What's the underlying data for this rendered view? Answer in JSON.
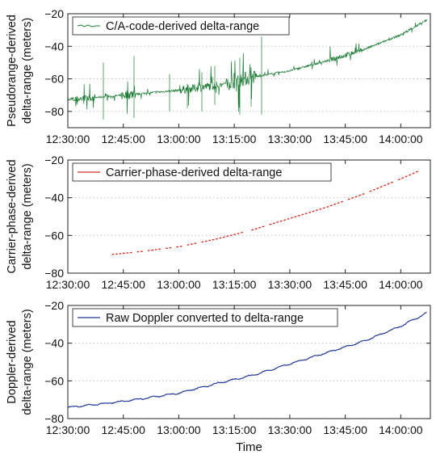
{
  "chart_data": [
    {
      "type": "line",
      "ylabel": [
        "Pseudorange-derived",
        "delta-range (meters)"
      ],
      "xlabel": "",
      "xlim": [
        "12:30:00",
        "14:08:00"
      ],
      "ylim": [
        -90,
        -20
      ],
      "yticks": [
        -80,
        -60,
        -40,
        -20
      ],
      "xticks": [
        "12:30:00",
        "12:45:00",
        "13:00:00",
        "13:15:00",
        "13:30:00",
        "13:45:00",
        "14:00:00"
      ],
      "grid": true,
      "legend_position": "top-left",
      "series": [
        {
          "name": "C/A-code-derived delta-range",
          "color": "#1a7a32",
          "noisy": true,
          "x": [
            "12:30:00",
            "12:40:00",
            "12:50:00",
            "13:00:00",
            "13:10:00",
            "13:20:00",
            "13:30:00",
            "13:40:00",
            "13:50:00",
            "14:00:00",
            "14:07:00"
          ],
          "y": [
            -73,
            -71,
            -69,
            -67,
            -64,
            -59,
            -55,
            -49,
            -42,
            -33,
            -24
          ]
        }
      ]
    },
    {
      "type": "line",
      "ylabel": [
        "Carrier-phase-derived",
        "delta-range (meters)"
      ],
      "xlabel": "",
      "xlim": [
        "12:30:00",
        "14:08:00"
      ],
      "ylim": [
        -80,
        -20
      ],
      "yticks": [
        -80,
        -60,
        -40,
        -20
      ],
      "xticks": [
        "12:30:00",
        "12:45:00",
        "13:00:00",
        "13:15:00",
        "13:30:00",
        "13:45:00",
        "14:00:00"
      ],
      "grid": true,
      "legend_position": "top-left",
      "series": [
        {
          "name": "Carrier-phase-derived delta-range",
          "color": "#d42a1e",
          "dashed": true,
          "x": [
            "12:40:00",
            "12:50:00",
            "13:00:00",
            "13:10:00",
            "13:20:00",
            "13:30:00",
            "13:40:00",
            "13:50:00",
            "14:00:00",
            "14:07:00"
          ],
          "y": [
            -70.5,
            -68.5,
            -66,
            -62,
            -57,
            -51,
            -45,
            -38,
            -30,
            -24
          ]
        }
      ]
    },
    {
      "type": "line",
      "ylabel": [
        "Doppler-derived",
        "delta-range (meters)"
      ],
      "xlabel": "Time",
      "xlim": [
        "12:30:00",
        "14:08:00"
      ],
      "ylim": [
        -80,
        -20
      ],
      "yticks": [
        -80,
        -60,
        -40,
        -20
      ],
      "xticks": [
        "12:30:00",
        "12:45:00",
        "13:00:00",
        "13:15:00",
        "13:30:00",
        "13:45:00",
        "14:00:00"
      ],
      "grid": true,
      "legend_position": "top-left",
      "series": [
        {
          "name": "Raw Doppler converted to delta-range",
          "color": "#22389a",
          "x": [
            "12:30:00",
            "12:40:00",
            "12:50:00",
            "13:00:00",
            "13:10:00",
            "13:20:00",
            "13:30:00",
            "13:40:00",
            "13:50:00",
            "14:00:00",
            "14:07:00"
          ],
          "y": [
            -74,
            -72,
            -69.5,
            -66.5,
            -61.5,
            -57,
            -51,
            -45,
            -39,
            -31,
            -24
          ]
        }
      ]
    }
  ]
}
